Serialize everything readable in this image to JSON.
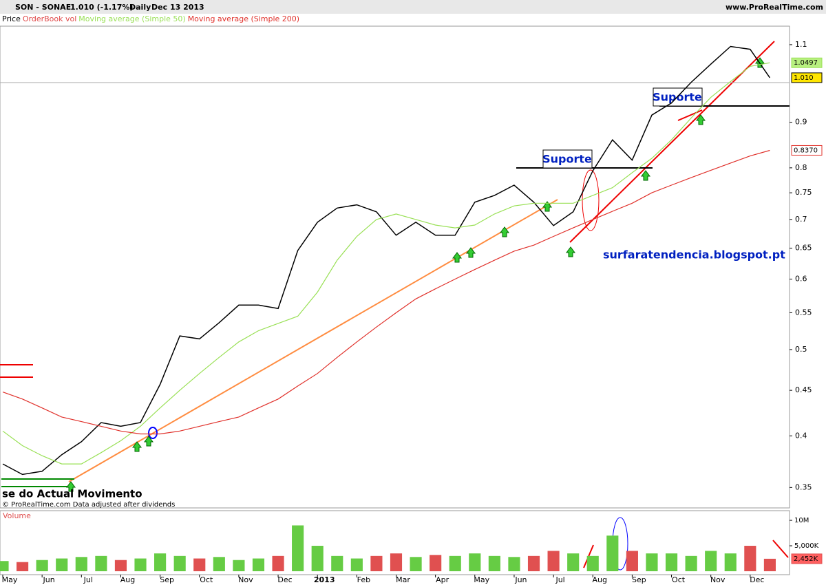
{
  "chart_data": {
    "type": "line",
    "header": {
      "symbol": "SON - SONAE",
      "quote": "1.010 (-1.17%)",
      "period": "Daily",
      "date": "Dec 13 2013",
      "site": "www.ProRealTime.com"
    },
    "legend_extra": "OrderBook vol",
    "legend_extra_color": "#e04848",
    "categories": [
      "May",
      null,
      "Jun",
      null,
      "Jul",
      null,
      "Aug",
      null,
      "Sep",
      null,
      "Oct",
      null,
      "Nov",
      null,
      "Dec",
      null,
      "2013",
      null,
      "Feb",
      null,
      "Mar",
      null,
      "Apr",
      null,
      "May",
      null,
      "Jun",
      null,
      "Jul",
      null,
      "Aug",
      null,
      "Sep",
      null,
      "Oct",
      null,
      "Nov",
      null,
      "Dec",
      null
    ],
    "log_scale": true,
    "ylim": [
      0.332,
      1.154
    ],
    "yticks": [
      0.35,
      0.4,
      0.45,
      0.5,
      0.55,
      0.6,
      0.65,
      0.7,
      0.75,
      0.8,
      0.9,
      1.1
    ],
    "y2lim": [
      0,
      11900000
    ],
    "y2ticks": [
      {
        "value": 5000000,
        "label": "5,000K"
      },
      {
        "value": 10000000,
        "label": "10M"
      }
    ],
    "series": [
      {
        "name": "Price",
        "color": "#000000",
        "values": [
          0.372,
          0.362,
          0.365,
          0.381,
          0.394,
          0.414,
          0.41,
          0.414,
          0.457,
          0.518,
          0.514,
          0.536,
          0.561,
          0.561,
          0.556,
          0.646,
          0.695,
          0.721,
          0.727,
          0.714,
          0.672,
          0.695,
          0.672,
          0.672,
          0.732,
          0.745,
          0.765,
          0.732,
          0.689,
          0.714,
          0.794,
          0.86,
          0.816,
          0.917,
          0.946,
          0.998,
          1.046,
          1.095,
          1.087,
          1.01
        ],
        "value_labels": [
          null,
          null,
          null,
          null,
          null,
          null,
          null,
          null,
          null,
          null,
          null,
          null,
          null,
          null,
          null,
          null,
          null,
          null,
          null,
          null,
          null,
          null,
          null,
          null,
          null,
          null,
          null,
          null,
          null,
          null,
          null,
          null,
          null,
          null,
          null,
          null,
          null,
          null,
          null,
          "1.010"
        ],
        "label_fill": "#ffe600"
      },
      {
        "name": "Moving average (Simple 50)",
        "color": "#99e055",
        "values": [
          0.405,
          0.39,
          0.38,
          0.372,
          0.372,
          0.383,
          0.395,
          0.41,
          0.43,
          0.45,
          0.47,
          0.49,
          0.51,
          0.525,
          0.535,
          0.545,
          0.58,
          0.63,
          0.67,
          0.7,
          0.71,
          0.7,
          0.69,
          0.685,
          0.69,
          0.71,
          0.725,
          0.73,
          0.73,
          0.73,
          0.745,
          0.76,
          0.79,
          0.82,
          0.86,
          0.91,
          0.96,
          1.0,
          1.04,
          1.0497
        ],
        "value_labels": [
          null,
          null,
          null,
          null,
          null,
          null,
          null,
          null,
          null,
          null,
          null,
          null,
          null,
          null,
          null,
          null,
          null,
          null,
          null,
          null,
          null,
          null,
          null,
          null,
          null,
          null,
          null,
          null,
          null,
          null,
          null,
          null,
          null,
          null,
          null,
          null,
          null,
          null,
          null,
          "1.0497"
        ],
        "label_fill": "#b8f080"
      },
      {
        "name": "Moving average (Simple 200)",
        "color": "#e0302a",
        "values": [
          0.448,
          0.44,
          0.43,
          0.42,
          0.415,
          0.41,
          0.405,
          0.402,
          0.402,
          0.405,
          0.41,
          0.415,
          0.42,
          0.43,
          0.44,
          0.455,
          0.47,
          0.49,
          0.51,
          0.53,
          0.55,
          0.57,
          0.585,
          0.6,
          0.615,
          0.63,
          0.645,
          0.655,
          0.67,
          0.685,
          0.7,
          0.715,
          0.73,
          0.75,
          0.765,
          0.78,
          0.795,
          0.81,
          0.825,
          0.837
        ],
        "value_labels": [
          null,
          null,
          null,
          null,
          null,
          null,
          null,
          null,
          null,
          null,
          null,
          null,
          null,
          null,
          null,
          null,
          null,
          null,
          null,
          null,
          null,
          null,
          null,
          null,
          null,
          null,
          null,
          null,
          null,
          null,
          null,
          null,
          null,
          null,
          null,
          null,
          null,
          null,
          null,
          "0.8370"
        ],
        "label_fill": "#ffffff"
      },
      {
        "name": "Volume",
        "type": "bar",
        "axis": "y2",
        "color": "#66cc44",
        "down_color": "#e05050",
        "values": [
          2000000,
          1800000,
          2200000,
          2500000,
          2800000,
          3000000,
          2200000,
          2500000,
          3500000,
          3000000,
          2500000,
          2800000,
          2200000,
          2500000,
          3000000,
          9000000,
          5000000,
          3000000,
          2500000,
          3000000,
          3500000,
          2800000,
          3200000,
          3000000,
          3500000,
          3000000,
          2800000,
          3000000,
          4000000,
          3500000,
          3000000,
          7000000,
          4000000,
          3500000,
          3500000,
          3000000,
          4000000,
          3500000,
          5000000,
          2452000
        ],
        "value_labels": [
          null,
          null,
          null,
          null,
          null,
          null,
          null,
          null,
          null,
          null,
          null,
          null,
          null,
          null,
          null,
          null,
          null,
          null,
          null,
          null,
          null,
          null,
          null,
          null,
          null,
          null,
          null,
          null,
          null,
          null,
          null,
          null,
          null,
          null,
          null,
          null,
          null,
          null,
          null,
          "2,452K"
        ],
        "label_fill": "#ff6060"
      }
    ],
    "annotations": [
      "Suporte",
      "Suporte",
      "surfaratendencia.blogspot.pt",
      "se do Actual Movimento",
      "© ProRealTime.com  Data adjusted after dividends"
    ]
  }
}
